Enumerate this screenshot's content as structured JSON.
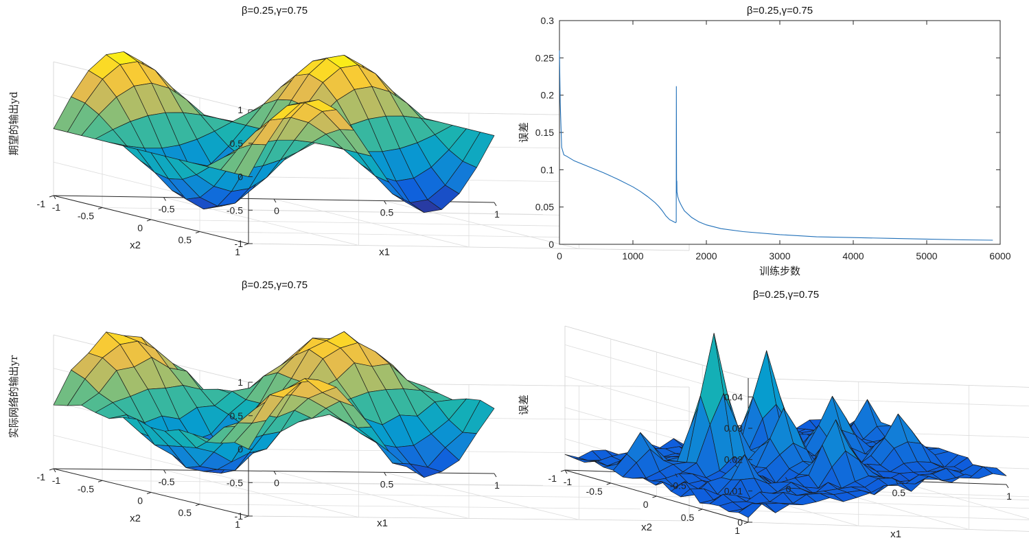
{
  "chart_data": [
    {
      "id": "desired",
      "type": "surface3d",
      "title": "β=0.25,γ=0.75",
      "xlabel": "x1",
      "ylabel": "x2",
      "zlabel": "期望的输出yd",
      "xlim": [
        -1,
        1
      ],
      "ylim": [
        -1,
        1
      ],
      "zlim": [
        -1,
        1
      ],
      "xticks": [
        "-1",
        "-0.5",
        "0",
        "0.5",
        "1"
      ],
      "yticks": [
        "-1",
        "-0.5",
        "0",
        "0.5",
        "1"
      ],
      "zticks": [
        "-1",
        "-0.5",
        "0",
        "0.5",
        "1"
      ],
      "grid_n": 15,
      "function": "sin(pi*x1) * cos(pi*x2)",
      "colormap": "parula"
    },
    {
      "id": "loss",
      "type": "line",
      "title": "β=0.25,γ=0.75",
      "xlabel": "训练步数",
      "ylabel": "误差",
      "xlim": [
        0,
        6000
      ],
      "ylim": [
        0,
        0.3
      ],
      "xticks": [
        "0",
        "1000",
        "2000",
        "3000",
        "4000",
        "5000",
        "6000"
      ],
      "yticks": [
        "0",
        "0.05",
        "0.1",
        "0.15",
        "0.2",
        "0.25",
        "0.3"
      ],
      "series": [
        {
          "name": "误差",
          "x": [
            0,
            10,
            30,
            60,
            100,
            200,
            400,
            600,
            800,
            1000,
            1100,
            1200,
            1300,
            1350,
            1400,
            1450,
            1500,
            1540,
            1560,
            1580,
            1590,
            1592,
            1594,
            1596,
            1598,
            1600,
            1610,
            1630,
            1660,
            1700,
            1800,
            1900,
            2000,
            2200,
            2500,
            3000,
            3500,
            4000,
            4500,
            5000,
            5500,
            5900
          ],
          "y": [
            0.26,
            0.19,
            0.13,
            0.12,
            0.118,
            0.112,
            0.104,
            0.096,
            0.087,
            0.077,
            0.071,
            0.064,
            0.056,
            0.051,
            0.045,
            0.038,
            0.033,
            0.031,
            0.03,
            0.029,
            0.03,
            0.212,
            0.09,
            0.075,
            0.085,
            0.07,
            0.064,
            0.058,
            0.052,
            0.045,
            0.036,
            0.03,
            0.026,
            0.021,
            0.017,
            0.013,
            0.01,
            0.009,
            0.008,
            0.007,
            0.006,
            0.0055
          ]
        }
      ]
    },
    {
      "id": "actual",
      "type": "surface3d",
      "title": "β=0.25,γ=0.75",
      "xlabel": "x1",
      "ylabel": "x2",
      "zlabel": "实际网络的输出yr",
      "xlim": [
        -1,
        1
      ],
      "ylim": [
        -1,
        1
      ],
      "zlim": [
        -1,
        1
      ],
      "xticks": [
        "-1",
        "-0.5",
        "0",
        "0.5",
        "1"
      ],
      "yticks": [
        "-1",
        "-0.5",
        "0",
        "0.5",
        "1"
      ],
      "zticks": [
        "-1",
        "-0.5",
        "0",
        "0.5",
        "1"
      ],
      "grid_n": 15,
      "function": "approx sin(pi*x1) * cos(pi*x2)",
      "colormap": "parula"
    },
    {
      "id": "error",
      "type": "surface3d",
      "title": "β=0.25,γ=0.75",
      "xlabel": "x1",
      "ylabel": "x2",
      "zlabel": "误差",
      "xlim": [
        -1,
        1
      ],
      "ylim": [
        -1,
        1
      ],
      "zlim": [
        0,
        0.045
      ],
      "xticks": [
        "-1",
        "-0.5",
        "0",
        "0.5",
        "1"
      ],
      "yticks": [
        "-1",
        "-0.5",
        "0",
        "0.5",
        "1"
      ],
      "zticks": [
        "0",
        "0.01",
        "0.02",
        "0.03",
        "0.04"
      ],
      "grid_n": 20,
      "function": "|yd - yr|",
      "colormap": "parula"
    }
  ]
}
